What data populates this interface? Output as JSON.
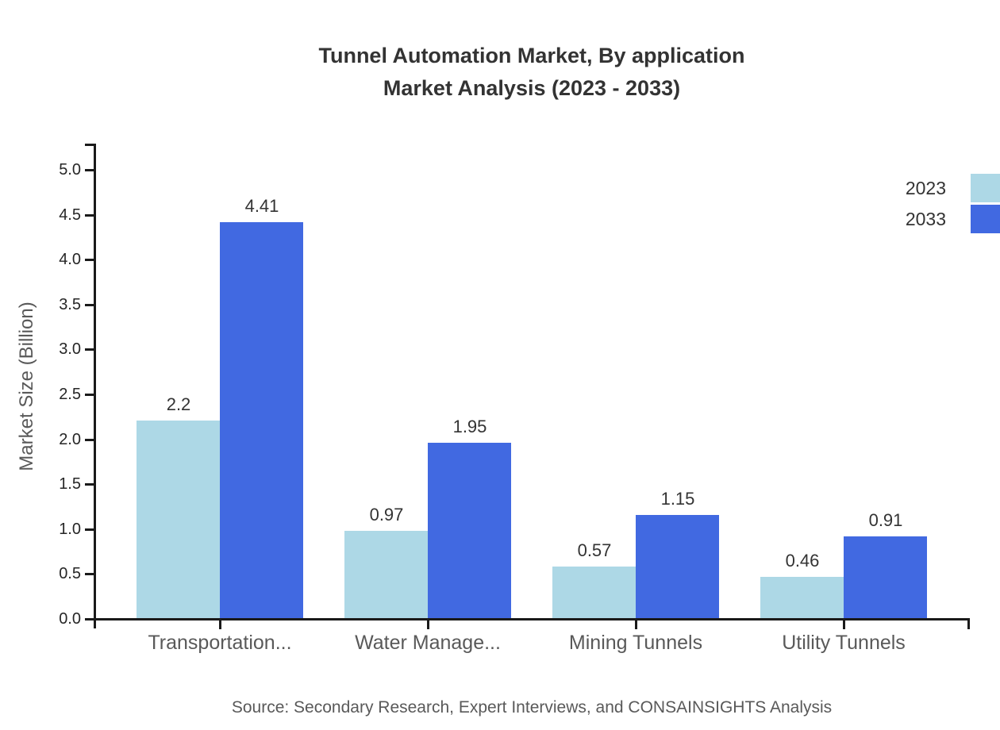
{
  "title": {
    "line1": "Tunnel Automation Market, By application",
    "line2": "Market Analysis (2023 - 2033)"
  },
  "source": {
    "text": "Source: Secondary Research, Expert Interviews, and CONSAINSIGHTS Analysis"
  },
  "legend": [
    {
      "label": "2023",
      "color": "#ADD8E6"
    },
    {
      "label": "2033",
      "color": "#4169E1"
    }
  ],
  "chart_data": {
    "type": "bar",
    "title": "Tunnel Automation Market, By application Market Analysis (2023 - 2033)",
    "categories": [
      "Transportation...",
      "Water Manage...",
      "Mining Tunnels",
      "Utility Tunnels"
    ],
    "series": [
      {
        "name": "2023",
        "color": "#ADD8E6",
        "values": [
          2.2,
          0.97,
          0.57,
          0.46
        ]
      },
      {
        "name": "2033",
        "color": "#4169E1",
        "values": [
          4.41,
          1.95,
          1.15,
          0.91
        ]
      }
    ],
    "xlabel": "",
    "ylabel": "Market Size (Billion)",
    "ylim": [
      0,
      5.0
    ],
    "ytick_step": 0.5,
    "grid": false,
    "legend_position": "top-right",
    "bar_value_labels": true
  }
}
